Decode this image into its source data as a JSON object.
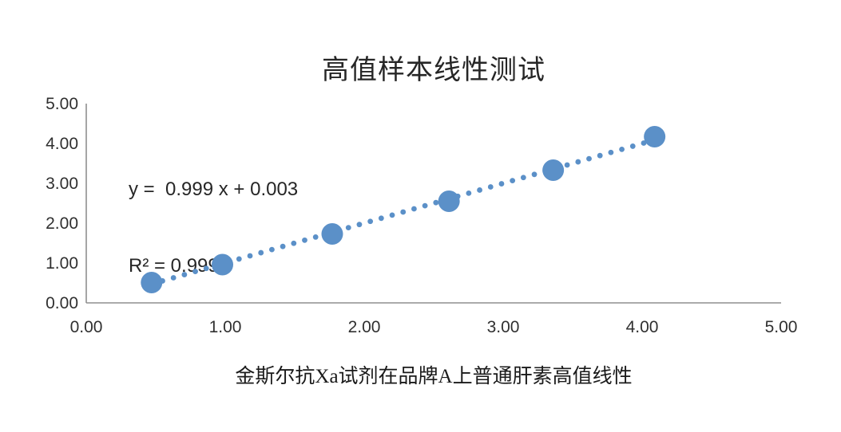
{
  "chart_data": {
    "type": "scatter",
    "title": "高值样本线性测试",
    "caption": "金斯尔抗Xa试剂在品牌A上普通肝素高值线性",
    "trendline": {
      "equation_label": "y =  0.999 x + 0.003",
      "r2_label": "R² = 0.999",
      "slope": 0.999,
      "intercept": 0.003,
      "style": "dotted",
      "x_start": 0.47,
      "x_end": 4.09
    },
    "points": [
      {
        "x": 0.47,
        "y": 0.51
      },
      {
        "x": 0.98,
        "y": 0.96
      },
      {
        "x": 1.77,
        "y": 1.73
      },
      {
        "x": 2.61,
        "y": 2.55
      },
      {
        "x": 3.36,
        "y": 3.33
      },
      {
        "x": 4.09,
        "y": 4.17
      }
    ],
    "xlabel": "",
    "ylabel": "",
    "xlim": [
      0,
      5
    ],
    "ylim": [
      0,
      5
    ],
    "x_ticks": [
      "0.00",
      "1.00",
      "2.00",
      "3.00",
      "4.00",
      "5.00"
    ],
    "y_ticks": [
      "0.00",
      "1.00",
      "2.00",
      "3.00",
      "4.00",
      "5.00"
    ],
    "grid": false,
    "legend": "none",
    "colors": {
      "marker": "#5b90c8",
      "trendline": "#5b90c8",
      "axis_line": "#8f8f8f",
      "text": "#303030"
    }
  }
}
